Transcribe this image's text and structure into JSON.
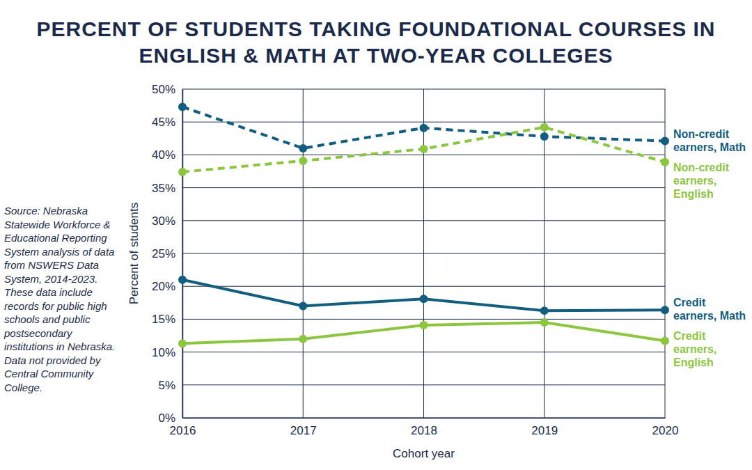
{
  "chart_data": {
    "type": "line",
    "title": "PERCENT OF STUDENTS TAKING FOUNDATIONAL COURSES IN ENGLISH & MATH AT TWO-YEAR COLLEGES",
    "x": [
      2016,
      2017,
      2018,
      2019,
      2020
    ],
    "xlim": [
      2016,
      2020
    ],
    "xticks": [
      2016,
      2017,
      2018,
      2019,
      2020
    ],
    "x_label": "Cohort year",
    "y_label": "Percent of students",
    "ylim": [
      0,
      50
    ],
    "yticks": [
      {
        "value": 0,
        "label": "0%"
      },
      {
        "value": 5,
        "label": "5%"
      },
      {
        "value": 10,
        "label": "10%"
      },
      {
        "value": 15,
        "label": "15%"
      },
      {
        "value": 20,
        "label": "20%"
      },
      {
        "value": 25,
        "label": "25%"
      },
      {
        "value": 30,
        "label": "30%"
      },
      {
        "value": 35,
        "label": "35%"
      },
      {
        "value": 40,
        "label": "40%"
      },
      {
        "value": 45,
        "label": "45%"
      },
      {
        "value": 50,
        "label": "50%"
      }
    ],
    "grid": true,
    "legend": "right",
    "marker": "circle",
    "series": [
      {
        "name": "Non-credit earners, Math",
        "color": "#125e80",
        "line_style": "dashed",
        "values": [
          47.3,
          41.0,
          44.1,
          42.8,
          42.1
        ]
      },
      {
        "name": "Non-credit earners, English",
        "color": "#8cc63e",
        "line_style": "dashed",
        "values": [
          37.4,
          39.1,
          40.9,
          44.2,
          38.9
        ]
      },
      {
        "name": "Credit earners, Math",
        "color": "#125e80",
        "line_style": "solid",
        "values": [
          21.0,
          17.0,
          18.1,
          16.3,
          16.4
        ]
      },
      {
        "name": "Credit earners, English",
        "color": "#8cc63e",
        "line_style": "solid",
        "values": [
          11.3,
          12.0,
          14.1,
          14.5,
          11.7
        ]
      }
    ],
    "annotations": [
      "Source: Nebraska Statewide Workforce & Educational Reporting System analysis of data from NSWERS Data System, 2014-2023. These data include records for public high schools and public postsecondary institutions in Nebraska. Data not provided by Central Community College."
    ]
  }
}
